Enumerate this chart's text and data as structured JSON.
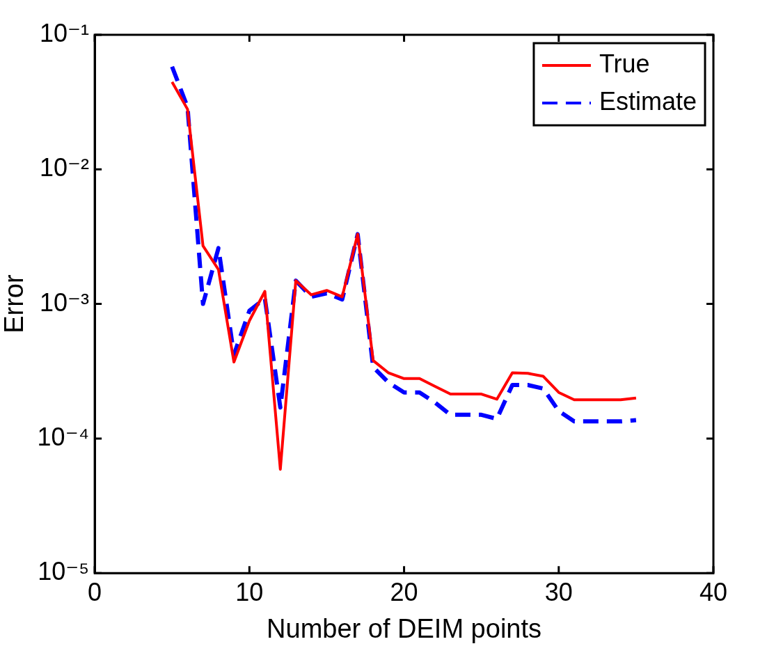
{
  "chart_data": {
    "type": "line",
    "xlabel": "Number of DEIM points",
    "ylabel": "Error",
    "x": [
      5,
      6,
      7,
      8,
      9,
      10,
      11,
      12,
      13,
      14,
      15,
      16,
      17,
      18,
      19,
      20,
      21,
      22,
      23,
      24,
      25,
      26,
      27,
      28,
      29,
      30,
      31,
      32,
      33,
      34,
      35
    ],
    "series": [
      {
        "name": "True",
        "color": "#ff0000",
        "line_style": "solid",
        "values": [
          0.0446,
          0.028,
          0.0027,
          0.0018,
          0.00037,
          0.00075,
          0.00124,
          5.9e-05,
          0.00149,
          0.00117,
          0.00126,
          0.00113,
          0.0033,
          0.00038,
          0.000307,
          0.000279,
          0.000279,
          0.000244,
          0.000214,
          0.000214,
          0.000214,
          0.000196,
          0.000308,
          0.000305,
          0.00029,
          0.00022,
          0.000194,
          0.000194,
          0.000194,
          0.000194,
          0.0002
        ]
      },
      {
        "name": "Estimate",
        "color": "#0000ff",
        "line_style": "dashed",
        "values": [
          0.058,
          0.029,
          0.001,
          0.0026,
          0.00042,
          0.00089,
          0.0011,
          0.00017,
          0.00149,
          0.00113,
          0.0012,
          0.00108,
          0.0033,
          0.00034,
          0.00026,
          0.00022,
          0.00022,
          0.000185,
          0.00015,
          0.00015,
          0.00015,
          0.00014,
          0.00025,
          0.00025,
          0.000235,
          0.00016,
          0.000134,
          0.000134,
          0.000134,
          0.000134,
          0.000137
        ]
      }
    ],
    "log": "y",
    "xlim": [
      0,
      40
    ],
    "xticks": [
      0,
      10,
      20,
      30,
      40
    ],
    "ylim": [
      1e-05,
      0.1
    ],
    "yticks": [
      {
        "value": 1e-05,
        "label": "10⁻⁵"
      },
      {
        "value": 0.0001,
        "label": "10⁻⁴"
      },
      {
        "value": 0.001,
        "label": "10⁻³"
      },
      {
        "value": 0.01,
        "label": "10⁻²"
      },
      {
        "value": 0.1,
        "label": "10⁻¹"
      }
    ],
    "grid": false,
    "legend": "top right",
    "marker": "none"
  }
}
